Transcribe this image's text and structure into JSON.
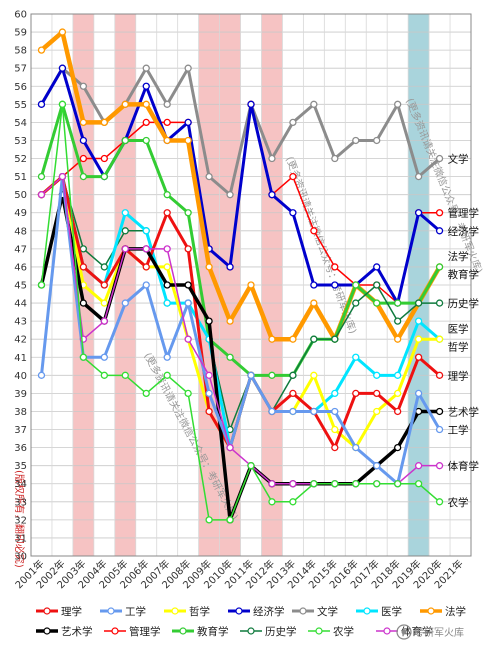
{
  "chart_data": {
    "type": "line",
    "x": [
      "2001年",
      "2002年",
      "2003年",
      "2004年",
      "2005年",
      "2006年",
      "2007年",
      "2008年",
      "2009年",
      "2010年",
      "2011年",
      "2012年",
      "2013年",
      "2014年",
      "2015年",
      "2016年",
      "2017年",
      "2018年",
      "2019年",
      "2020年",
      "2021年"
    ],
    "ylim": [
      30,
      60
    ],
    "yticks": [
      30,
      31,
      32,
      33,
      34,
      35,
      36,
      37,
      38,
      39,
      40,
      41,
      42,
      43,
      44,
      45,
      46,
      47,
      48,
      49,
      50,
      51,
      52,
      53,
      54,
      55,
      56,
      57,
      58,
      59,
      60
    ],
    "grid": true,
    "highlighted_years": [
      {
        "year": "2003年",
        "color": "#f6c3c3"
      },
      {
        "year": "2005年",
        "color": "#f6c3c3"
      },
      {
        "year": "2009年",
        "color": "#f6c3c3"
      },
      {
        "year": "2010年",
        "color": "#f6c3c3"
      },
      {
        "year": "2012年",
        "color": "#f6c3c3"
      },
      {
        "year": "2019年",
        "color": "#a9d4dc"
      }
    ],
    "series": [
      {
        "name": "文学",
        "color": "#8c8c8c",
        "width": 3,
        "values": [
          55,
          57,
          56,
          54,
          55,
          57,
          55,
          57,
          51,
          50,
          55,
          52,
          54,
          55,
          52,
          53,
          53,
          55,
          51,
          52,
          null
        ]
      },
      {
        "name": "管理学",
        "color": "#ff0000",
        "width": 1.5,
        "values": [
          50,
          51,
          52,
          52,
          53,
          54,
          54,
          54,
          47,
          46,
          55,
          50,
          51,
          48,
          46,
          45,
          45,
          44,
          49,
          49,
          null
        ]
      },
      {
        "name": "经济学",
        "color": "#0000cc",
        "width": 3,
        "values": [
          55,
          57,
          53,
          51,
          53,
          56,
          53,
          54,
          47,
          46,
          55,
          50,
          49,
          45,
          45,
          45,
          46,
          44,
          49,
          48,
          null
        ]
      },
      {
        "name": "法学",
        "color": "#ff9900",
        "width": 4.5,
        "values": [
          58,
          59,
          54,
          54,
          55,
          55,
          53,
          53,
          46,
          43,
          45,
          42,
          42,
          44,
          42,
          45,
          44,
          42,
          44,
          46,
          null
        ]
      },
      {
        "name": "教育学",
        "color": "#33cc33",
        "width": 3,
        "values": [
          51,
          55,
          51,
          51,
          53,
          53,
          50,
          49,
          42,
          41,
          40,
          40,
          40,
          42,
          42,
          45,
          44,
          44,
          44,
          46,
          null
        ]
      },
      {
        "name": "历史学",
        "color": "#0f7a3d",
        "width": 1.5,
        "values": [
          50,
          51,
          47,
          46,
          48,
          48,
          44,
          44,
          42,
          37,
          40,
          38,
          40,
          42,
          42,
          44,
          45,
          43,
          44,
          44,
          null
        ]
      },
      {
        "name": "医学",
        "color": "#00e5ff",
        "width": 3,
        "values": [
          50,
          51,
          46,
          45,
          49,
          48,
          44,
          44,
          42,
          36,
          40,
          38,
          38,
          38,
          39,
          41,
          40,
          40,
          43,
          42,
          null
        ]
      },
      {
        "name": "哲学",
        "color": "#ffff00",
        "width": 3,
        "values": [
          50,
          51,
          45,
          44,
          47,
          46,
          46,
          42,
          38,
          36,
          40,
          38,
          38,
          40,
          37,
          36,
          38,
          39,
          42,
          42,
          null
        ]
      },
      {
        "name": "理学",
        "color": "#ee1111",
        "width": 3,
        "values": [
          50,
          51,
          46,
          45,
          47,
          46,
          49,
          47,
          38,
          36,
          40,
          38,
          39,
          38,
          36,
          39,
          39,
          38,
          41,
          40,
          null
        ]
      },
      {
        "name": "艺术学",
        "color": "#000000",
        "width": 3.5,
        "values": [
          45,
          50,
          44,
          43,
          47,
          47,
          45,
          45,
          43,
          32,
          35,
          34,
          34,
          34,
          34,
          34,
          35,
          36,
          38,
          38,
          null
        ]
      },
      {
        "name": "工学",
        "color": "#6699ee",
        "width": 3,
        "values": [
          40,
          51,
          41,
          41,
          44,
          45,
          41,
          44,
          39,
          36,
          40,
          38,
          38,
          38,
          38,
          36,
          35,
          34,
          39,
          37,
          null
        ]
      },
      {
        "name": "体育学",
        "color": "#cc33cc",
        "width": 1.5,
        "values": [
          50,
          51,
          42,
          43,
          47,
          47,
          47,
          42,
          40,
          36,
          35,
          34,
          34,
          34,
          34,
          34,
          34,
          34,
          35,
          35,
          null
        ]
      },
      {
        "name": "农学",
        "color": "#33dd33",
        "width": 1.5,
        "values": [
          45,
          55,
          41,
          40,
          40,
          39,
          40,
          39,
          32,
          32,
          35,
          33,
          33,
          34,
          34,
          34,
          34,
          34,
          34,
          33,
          null
        ]
      }
    ],
    "end_labels": [
      {
        "text": "文学",
        "value": 52
      },
      {
        "text": "管理学",
        "value": 49
      },
      {
        "text": "经济学",
        "value": 48
      },
      {
        "text": "法学",
        "value": 46.6
      },
      {
        "text": "教育学",
        "value": 45.6
      },
      {
        "text": "历史学",
        "value": 44
      },
      {
        "text": "医学",
        "value": 42.6
      },
      {
        "text": "哲学",
        "value": 41.6
      },
      {
        "text": "理学",
        "value": 40
      },
      {
        "text": "艺术学",
        "value": 38
      },
      {
        "text": "工学",
        "value": 37
      },
      {
        "text": "体育学",
        "value": 35
      },
      {
        "text": "农学",
        "value": 33
      }
    ],
    "legend": {
      "placement": "bottom",
      "rows": [
        [
          "理学",
          "工学",
          "哲学",
          "经济学",
          "文学",
          "医学",
          "法学"
        ],
        [
          "艺术学",
          "管理学",
          "教育学",
          "历史学",
          "农学",
          "体育学"
        ]
      ]
    }
  },
  "watermarks": [
    "(更多资讯请关注微信公众号：考研军火库)",
    "(更多资讯请关注微信公众号：考研军火库)",
    "(更多资讯请关注微信公众号：考研军火库)",
    "(版权所有，翻印必究)"
  ],
  "corner_logo": {
    "text": "考研军火库"
  }
}
